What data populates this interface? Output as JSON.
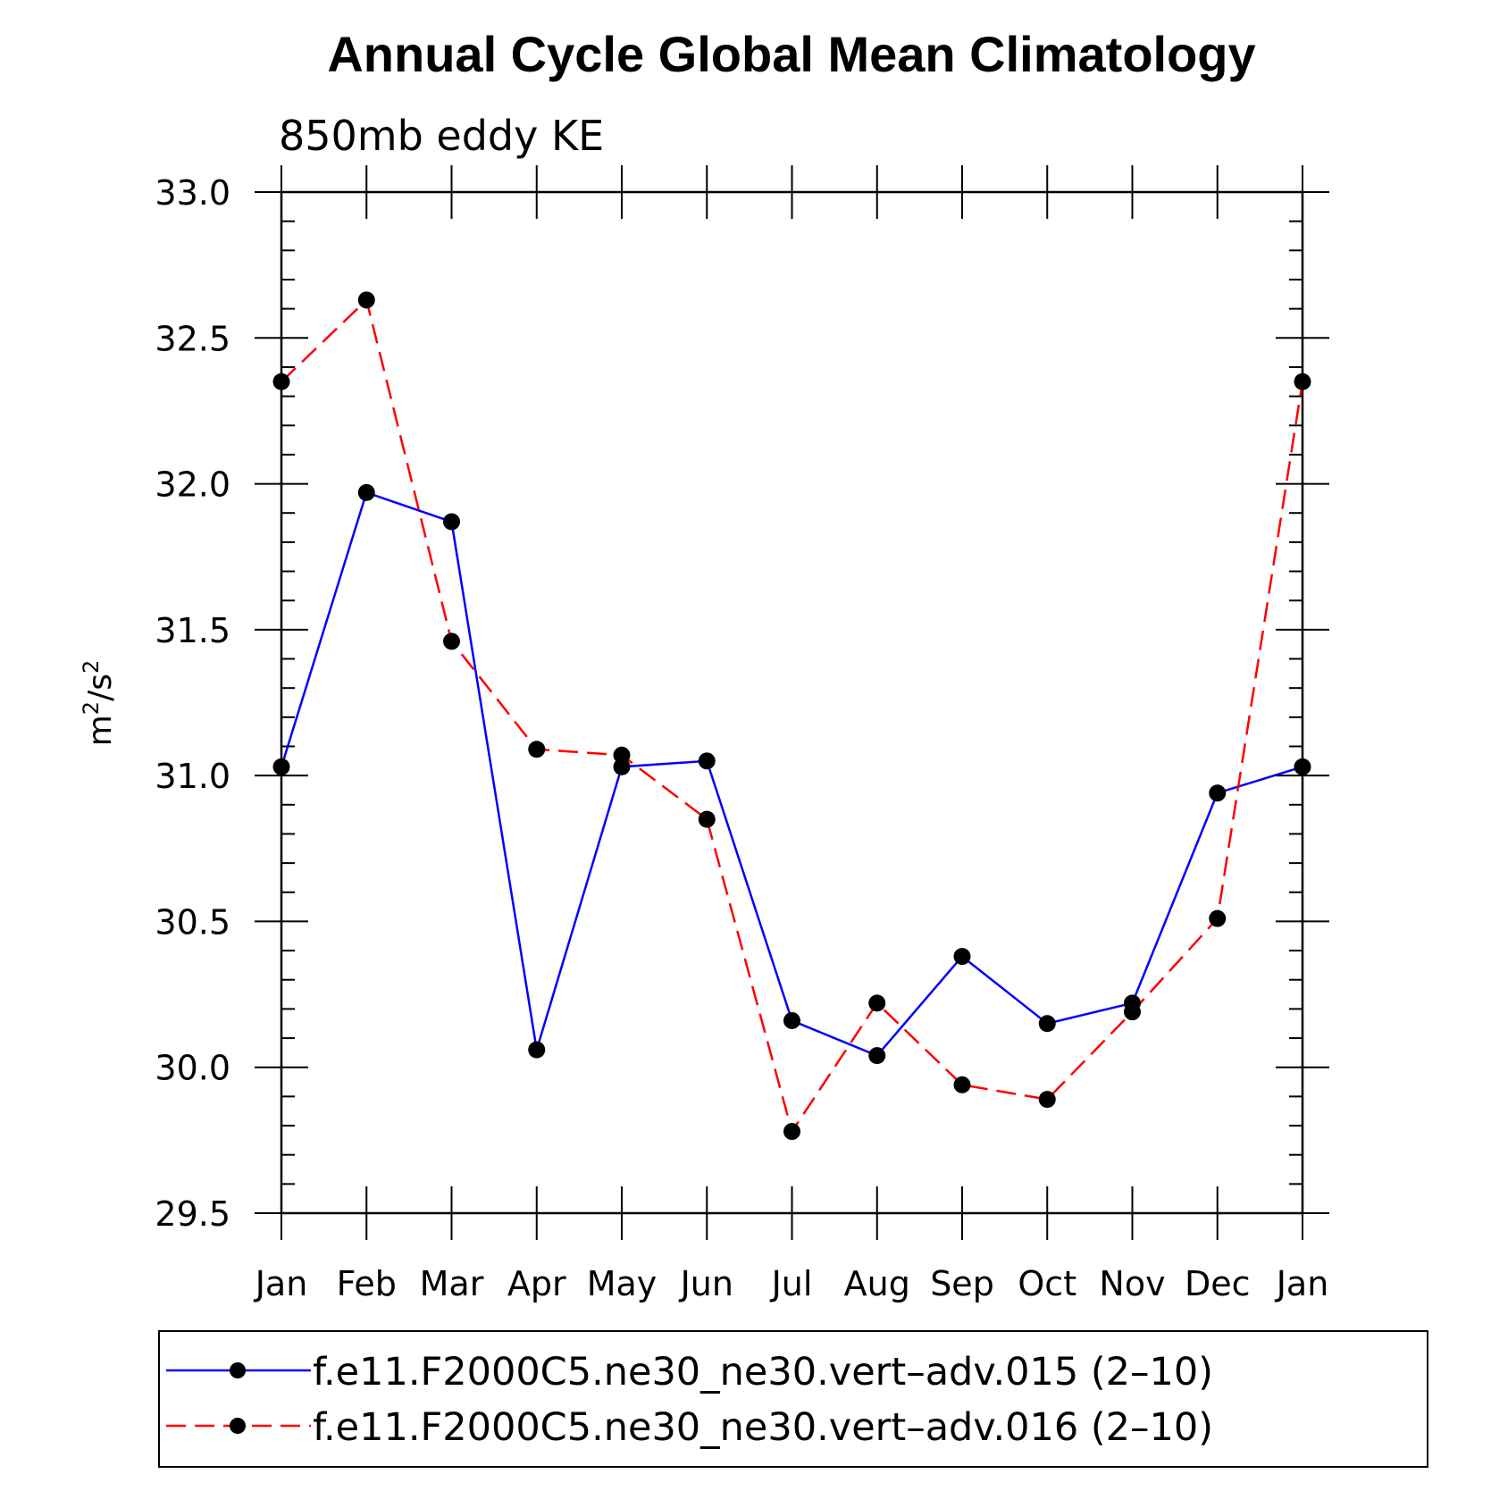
{
  "chart_data": {
    "type": "line",
    "title": "Annual Cycle Global Mean Climatology",
    "subtitle": "850mb eddy KE",
    "xlabel": "",
    "ylabel": "m²/s²",
    "ylabel_parts": {
      "m": "m",
      "exp1": "2",
      "sep": "/s",
      "exp2": "2"
    },
    "categories": [
      "Jan",
      "Feb",
      "Mar",
      "Apr",
      "May",
      "Jun",
      "Jul",
      "Aug",
      "Sep",
      "Oct",
      "Nov",
      "Dec",
      "Jan"
    ],
    "ylim": [
      29.5,
      33.0
    ],
    "yticks": [
      "29.5",
      "30.0",
      "30.5",
      "31.0",
      "31.5",
      "32.0",
      "32.5",
      "33.0"
    ],
    "series": [
      {
        "name": "f.e11.F2000C5.ne30_ne30.vert–adv.015 (2–10)",
        "color": "#0000ff",
        "dash": "solid",
        "values": [
          31.03,
          31.97,
          31.87,
          30.06,
          31.03,
          31.05,
          30.16,
          30.04,
          30.38,
          30.15,
          30.22,
          30.94,
          31.03
        ]
      },
      {
        "name": "f.e11.F2000C5.ne30_ne30.vert–adv.016 (2–10)",
        "color": "#ff0000",
        "dash": "dashed",
        "values": [
          32.35,
          32.63,
          31.46,
          31.09,
          31.07,
          30.85,
          29.78,
          30.22,
          29.94,
          29.89,
          30.19,
          30.51,
          32.35
        ]
      }
    ],
    "legend_position": "bottom",
    "grid": false
  }
}
